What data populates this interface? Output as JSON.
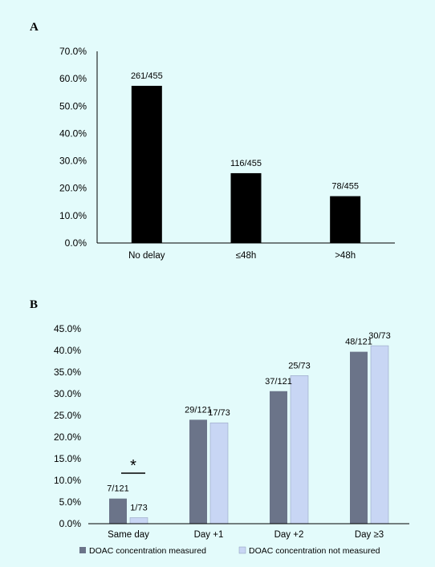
{
  "colors": {
    "background": "#e3fbfb",
    "bar_a": "#000000",
    "measured": "#6b7489",
    "not_measured": "#c8d6f4"
  },
  "chart_data": [
    {
      "type": "bar",
      "panel": "A",
      "categories": [
        "No delay",
        "≤48h",
        ">48h"
      ],
      "values": [
        57.4,
        25.5,
        17.1
      ],
      "data_labels": [
        "261/455",
        "116/455",
        "78/455"
      ],
      "yticks": [
        "0.0%",
        "10.0%",
        "20.0%",
        "30.0%",
        "40.0%",
        "50.0%",
        "60.0%",
        "70.0%"
      ],
      "ylim": [
        0,
        70
      ],
      "title": "",
      "xlabel": "",
      "ylabel": "",
      "grid": false
    },
    {
      "type": "bar",
      "panel": "B",
      "categories": [
        "Same day",
        "Day +1",
        "Day +2",
        "Day ≥3"
      ],
      "series": [
        {
          "name": "DOAC concentration measured",
          "values": [
            5.8,
            24.0,
            30.6,
            39.7
          ],
          "labels": [
            "7/121",
            "29/121",
            "37/121",
            "48/121"
          ],
          "color": "#6b7489"
        },
        {
          "name": "DOAC concentration not measured",
          "values": [
            1.4,
            23.3,
            34.2,
            41.1
          ],
          "labels": [
            "1/73",
            "17/73",
            "25/73",
            "30/73"
          ],
          "color": "#c8d6f4"
        }
      ],
      "annotation": "*",
      "yticks": [
        "0.0%",
        "5.0%",
        "10.0%",
        "15.0%",
        "20.0%",
        "25.0%",
        "30.0%",
        "35.0%",
        "40.0%",
        "45.0%"
      ],
      "ylim": [
        0,
        45
      ],
      "title": "",
      "xlabel": "",
      "ylabel": "",
      "legend_position": "bottom",
      "grid": false
    }
  ]
}
